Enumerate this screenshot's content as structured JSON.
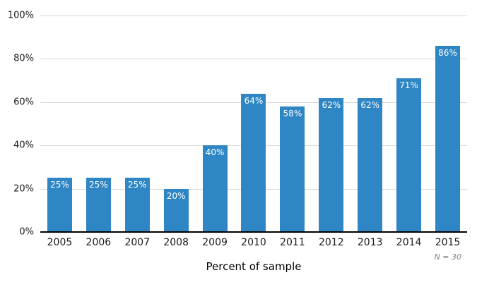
{
  "chart_data": {
    "type": "bar",
    "categories": [
      "2005",
      "2006",
      "2007",
      "2008",
      "2009",
      "2010",
      "2011",
      "2012",
      "2013",
      "2014",
      "2015"
    ],
    "values": [
      25,
      25,
      25,
      20,
      40,
      64,
      58,
      62,
      62,
      71,
      86
    ],
    "bar_labels": [
      "25%",
      "25%",
      "25%",
      "20%",
      "40%",
      "64%",
      "58%",
      "62%",
      "62%",
      "71%",
      "86%"
    ],
    "title": "",
    "xlabel": "Percent of sample",
    "ylabel": "",
    "ylim": [
      0,
      100
    ],
    "y_ticks": [
      0,
      20,
      40,
      60,
      80,
      100
    ],
    "y_tick_labels": [
      "0%",
      "20%",
      "40%",
      "60%",
      "80%",
      "100%"
    ],
    "annotation": "N = 30",
    "grid": true,
    "legend_position": "none",
    "colors": {
      "bar": "#2e86c4",
      "gridline": "#d9d9d9",
      "axis_line": "#000000",
      "tick_text": "#1a1a1a",
      "bar_label_text": "#ffffff",
      "annotation_text": "#7f7f7f"
    }
  }
}
